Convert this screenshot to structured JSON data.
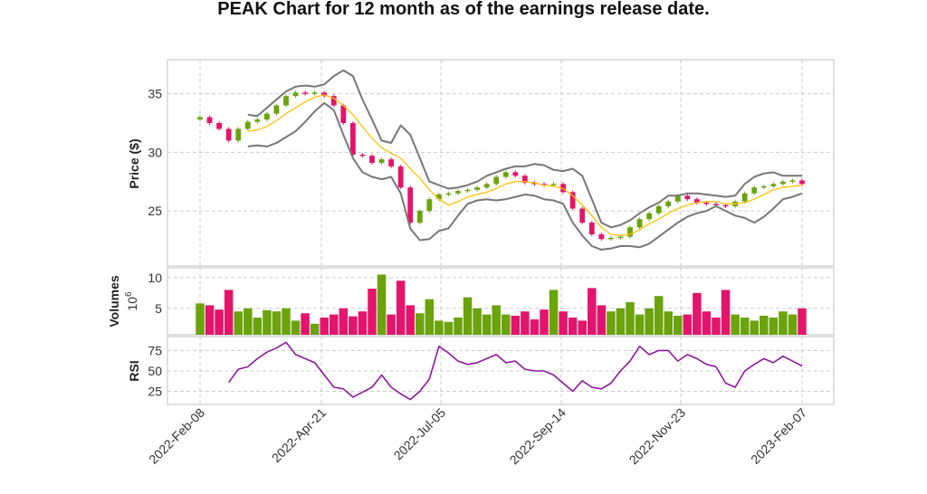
{
  "title": "PEAK Chart for 12 month as of the earnings release date.",
  "colors": {
    "up": "#6aa30c",
    "down": "#e3146b",
    "sma": "#ffc107",
    "band": "#777777",
    "rsi": "#8b1a9a",
    "grid": "#cccccc"
  },
  "chart_data": [
    {
      "type": "candlestick",
      "ylabel": "Price ($)",
      "ylim": [
        20.3,
        37.9
      ],
      "yticks": [
        25,
        30,
        35
      ],
      "grid": true,
      "x_ticks": [
        {
          "label": "2022-Feb-08",
          "index": 0
        },
        {
          "label": "2022-Apr-21",
          "index": 12.7
        },
        {
          "label": "2022-Jul-05",
          "index": 25.2
        },
        {
          "label": "2022-Sep-14",
          "index": 37.8
        },
        {
          "label": "2022-Nov-23",
          "index": 50.3
        },
        {
          "label": "2023-Feb-07",
          "index": 63
        }
      ],
      "open": [
        32.8,
        33.0,
        32.5,
        32.0,
        31.0,
        32.0,
        32.6,
        32.8,
        33.3,
        34.0,
        34.8,
        35.1,
        35.0,
        35.1,
        34.8,
        34.0,
        32.5,
        29.8,
        29.7,
        29.1,
        29.4,
        28.8,
        27.0,
        24.0,
        25.0,
        26.0,
        26.4,
        26.5,
        26.7,
        26.8,
        27.0,
        27.3,
        27.9,
        28.3,
        28.0,
        27.4,
        27.3,
        27.2,
        27.3,
        26.6,
        25.2,
        24.0,
        23.0,
        22.6,
        22.7,
        22.8,
        23.6,
        24.3,
        24.8,
        25.4,
        25.8,
        26.3,
        26.0,
        25.7,
        25.6,
        25.5,
        25.4,
        25.8,
        26.5,
        27.0,
        27.1,
        27.3,
        27.5,
        27.6
      ],
      "close": [
        33.0,
        32.5,
        32.0,
        31.0,
        32.0,
        32.6,
        32.8,
        33.3,
        34.0,
        34.8,
        35.1,
        35.0,
        35.1,
        34.8,
        34.0,
        32.5,
        29.8,
        29.7,
        29.1,
        29.4,
        28.8,
        27.0,
        24.0,
        25.0,
        26.0,
        26.4,
        26.5,
        26.7,
        26.8,
        27.0,
        27.3,
        27.9,
        28.3,
        28.0,
        27.4,
        27.3,
        27.2,
        27.3,
        26.6,
        25.2,
        24.0,
        23.0,
        22.6,
        22.7,
        22.8,
        23.6,
        24.3,
        24.8,
        25.4,
        25.8,
        26.3,
        26.0,
        25.7,
        25.6,
        25.5,
        25.4,
        25.8,
        26.5,
        27.0,
        27.1,
        27.3,
        27.5,
        27.6,
        27.3
      ],
      "sma": [
        null,
        null,
        null,
        null,
        null,
        31.8,
        31.9,
        32.2,
        32.7,
        33.3,
        33.8,
        34.3,
        34.7,
        34.9,
        34.6,
        34.0,
        33.2,
        32.2,
        31.2,
        30.4,
        29.9,
        29.5,
        28.6,
        27.8,
        26.8,
        26.0,
        25.5,
        25.8,
        26.2,
        26.4,
        26.6,
        26.9,
        27.3,
        27.5,
        27.5,
        27.4,
        27.2,
        27.1,
        26.9,
        26.3,
        25.5,
        24.6,
        23.6,
        23.0,
        22.9,
        23.0,
        23.4,
        23.9,
        24.3,
        24.8,
        25.2,
        25.5,
        25.7,
        25.8,
        25.8,
        25.6,
        25.6,
        25.7,
        26.0,
        26.4,
        26.8,
        27.0,
        27.1,
        27.2
      ],
      "upper_band": [
        null,
        null,
        null,
        null,
        null,
        33.2,
        33.1,
        33.8,
        34.5,
        35.2,
        35.6,
        35.7,
        35.6,
        35.8,
        36.5,
        37.0,
        36.5,
        34.5,
        32.8,
        31.0,
        30.8,
        32.3,
        31.5,
        29.5,
        27.5,
        27.2,
        26.9,
        27.0,
        27.2,
        27.5,
        28.0,
        28.3,
        28.6,
        28.8,
        28.8,
        29.0,
        28.9,
        28.5,
        28.4,
        28.6,
        28.0,
        26.0,
        24.0,
        23.6,
        23.8,
        24.2,
        24.8,
        25.3,
        25.7,
        26.3,
        26.3,
        26.5,
        26.5,
        26.4,
        26.3,
        26.2,
        26.3,
        27.3,
        27.9,
        28.2,
        28.3,
        28.0,
        28.0,
        28.0
      ],
      "lower_band": [
        null,
        null,
        null,
        null,
        null,
        30.5,
        30.6,
        30.5,
        30.8,
        31.3,
        31.8,
        32.6,
        33.5,
        34.2,
        33.6,
        31.5,
        29.5,
        28.3,
        27.9,
        27.7,
        27.9,
        26.5,
        23.5,
        22.5,
        22.6,
        23.3,
        23.5,
        24.6,
        25.6,
        25.9,
        26.0,
        25.9,
        26.0,
        26.2,
        26.4,
        26.3,
        26.0,
        25.9,
        25.6,
        24.0,
        22.9,
        22.0,
        21.7,
        21.8,
        22.0,
        22.0,
        21.9,
        22.2,
        22.8,
        23.4,
        24.0,
        24.5,
        24.8,
        25.0,
        25.4,
        25.0,
        24.6,
        24.4,
        24.0,
        24.5,
        25.2,
        26.0,
        26.2,
        26.5
      ]
    },
    {
      "type": "bar",
      "ylabel": "Volumes",
      "yunit": "10",
      "yunit_exp": "6",
      "ylim": [
        0.7,
        11.6
      ],
      "yticks": [
        5,
        10
      ],
      "grid": true,
      "values": [
        5.8,
        5.5,
        4.8,
        8.0,
        4.5,
        5.0,
        3.5,
        4.7,
        4.5,
        5.0,
        3.0,
        4.2,
        2.5,
        3.5,
        4.0,
        5.0,
        3.7,
        4.5,
        8.2,
        10.5,
        4.0,
        9.5,
        5.5,
        4.2,
        6.5,
        3.0,
        2.8,
        3.5,
        6.8,
        5.0,
        4.0,
        5.5,
        4.0,
        3.8,
        4.5,
        3.2,
        4.8,
        8.0,
        4.5,
        3.5,
        3.0,
        8.3,
        5.5,
        4.5,
        5.0,
        6.0,
        4.0,
        5.0,
        7.0,
        4.5,
        3.8,
        4.0,
        7.5,
        4.5,
        3.5,
        8.0,
        4.0,
        3.5,
        3.0,
        3.8,
        3.5,
        4.5,
        4.0,
        5.0
      ]
    },
    {
      "type": "line",
      "ylabel": "RSI",
      "ylim": [
        9,
        92
      ],
      "yticks": [
        25,
        50,
        75
      ],
      "grid": true,
      "values": [
        null,
        null,
        null,
        36,
        52,
        55,
        65,
        73,
        78,
        85,
        70,
        65,
        60,
        45,
        30,
        28,
        18,
        24,
        30,
        45,
        30,
        22,
        15,
        25,
        40,
        80,
        72,
        62,
        58,
        60,
        65,
        70,
        60,
        62,
        52,
        50,
        50,
        45,
        35,
        25,
        38,
        30,
        28,
        35,
        50,
        62,
        80,
        70,
        75,
        75,
        62,
        70,
        65,
        58,
        55,
        35,
        30,
        50,
        58,
        65,
        60,
        68,
        62,
        56
      ]
    }
  ]
}
